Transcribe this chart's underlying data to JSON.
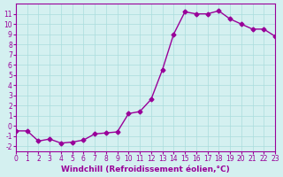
{
  "x": [
    0,
    1,
    2,
    3,
    4,
    5,
    6,
    7,
    8,
    9,
    10,
    11,
    12,
    13,
    14,
    15,
    16,
    17,
    18,
    19,
    20,
    21,
    22,
    23
  ],
  "y": [
    -0.5,
    -0.5,
    -1.5,
    -1.3,
    -1.7,
    -1.6,
    -1.4,
    -0.8,
    -0.7,
    -0.6,
    1.2,
    1.4,
    2.6,
    5.5,
    9.0,
    11.2,
    11.0,
    11.0,
    11.3,
    10.5,
    10.0,
    9.5,
    9.5,
    8.8
  ],
  "line_color": "#990099",
  "marker": "D",
  "marker_size": 2.5,
  "xlabel": "Windchill (Refroidissement éolien,°C)",
  "xlim": [
    0,
    23
  ],
  "ylim": [
    -2.5,
    12
  ],
  "xticks": [
    0,
    1,
    2,
    3,
    4,
    5,
    6,
    7,
    8,
    9,
    10,
    11,
    12,
    13,
    14,
    15,
    16,
    17,
    18,
    19,
    20,
    21,
    22,
    23
  ],
  "yticks": [
    -2,
    -1,
    0,
    1,
    2,
    3,
    4,
    5,
    6,
    7,
    8,
    9,
    10,
    11
  ],
  "background_color": "#d4f0f0",
  "grid_color": "#aadddd",
  "tick_label_fontsize": 5.5,
  "xlabel_fontsize": 6.5
}
